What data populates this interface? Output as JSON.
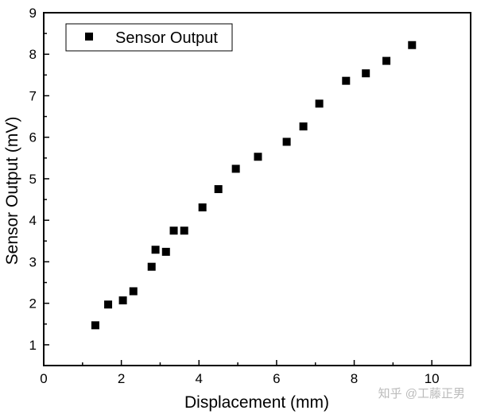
{
  "chart_data": {
    "type": "scatter",
    "title": "",
    "xlabel": "Displacement (mm)",
    "ylabel": "Sensor Output (mV)",
    "xlim": [
      0,
      11
    ],
    "ylim": [
      0.5,
      9
    ],
    "xticks": [
      0,
      2,
      4,
      6,
      8,
      10
    ],
    "yticks": [
      1,
      2,
      3,
      4,
      5,
      6,
      7,
      8,
      9
    ],
    "grid": false,
    "legend": {
      "position": "top-left",
      "entries": [
        "Sensor Output"
      ]
    },
    "series": [
      {
        "name": "Sensor Output",
        "marker": "square",
        "color": "#000000",
        "x": [
          1.33,
          1.66,
          2.04,
          2.31,
          2.78,
          2.88,
          3.15,
          3.35,
          3.62,
          4.09,
          4.5,
          4.95,
          5.52,
          6.26,
          6.69,
          7.1,
          7.79,
          8.3,
          8.83,
          9.49
        ],
        "y": [
          1.47,
          1.97,
          2.07,
          2.29,
          2.88,
          3.29,
          3.24,
          3.75,
          3.75,
          4.31,
          4.75,
          5.24,
          5.53,
          5.89,
          6.26,
          6.81,
          7.36,
          7.54,
          7.84,
          8.22
        ]
      }
    ]
  },
  "watermark": "知乎 @工藤正男"
}
